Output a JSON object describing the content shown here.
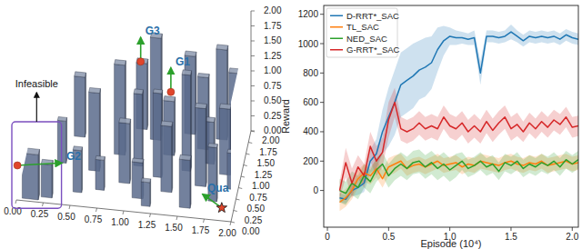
{
  "chart_data": [
    {
      "type": "scene3d",
      "xlim": [
        0,
        2
      ],
      "ylim": [
        0,
        2
      ],
      "zlim": [
        0,
        2
      ],
      "xticks": [
        {
          "value": 0,
          "label": "0.00"
        },
        {
          "value": 0.25,
          "label": "0.25"
        },
        {
          "value": 0.5,
          "label": "0.50"
        },
        {
          "value": 0.75,
          "label": "0.75"
        },
        {
          "value": 1,
          "label": "1.00"
        },
        {
          "value": 1.25,
          "label": "1.25"
        },
        {
          "value": 1.5,
          "label": "1.50"
        },
        {
          "value": 1.75,
          "label": "1.75"
        },
        {
          "value": 2,
          "label": "2.00"
        }
      ],
      "yticks": [
        {
          "value": 0,
          "label": "0.00"
        },
        {
          "value": 0.25,
          "label": "0.25"
        },
        {
          "value": 0.5,
          "label": "0.50"
        },
        {
          "value": 0.75,
          "label": "0.75"
        },
        {
          "value": 1,
          "label": "1.00"
        },
        {
          "value": 1.25,
          "label": "1.25"
        },
        {
          "value": 1.5,
          "label": "1.50"
        },
        {
          "value": 1.75,
          "label": "1.75"
        },
        {
          "value": 2,
          "label": "2.00"
        }
      ],
      "zticks": [
        {
          "value": 0,
          "label": "0.00"
        },
        {
          "value": 0.25,
          "label": "0.25"
        },
        {
          "value": 0.5,
          "label": "0.50"
        },
        {
          "value": 0.75,
          "label": "0.75"
        },
        {
          "value": 1,
          "label": "1.00"
        },
        {
          "value": 1.25,
          "label": "1.25"
        },
        {
          "value": 1.5,
          "label": "1.50"
        },
        {
          "value": 1.75,
          "label": "1.75"
        },
        {
          "value": 2,
          "label": "2.00"
        }
      ],
      "color": "#5b6b8c",
      "obstacles": [
        {
          "x": 0.05,
          "y": 0.05,
          "w": 0.15,
          "d": 0.12,
          "h": 0.75
        },
        {
          "x": 0.22,
          "y": 0.12,
          "w": 0.1,
          "d": 0.1,
          "h": 0.55
        },
        {
          "x": 0.5,
          "y": 0.3,
          "w": 0.08,
          "d": 0.08,
          "h": 0.7
        },
        {
          "x": 0.6,
          "y": 0.8,
          "w": 0.1,
          "d": 0.1,
          "h": 1.3
        },
        {
          "x": 0.7,
          "y": 0.4,
          "w": 0.08,
          "d": 0.08,
          "h": 0.5
        },
        {
          "x": 0.8,
          "y": 1.2,
          "w": 0.1,
          "d": 0.1,
          "h": 1.5
        },
        {
          "x": 0.9,
          "y": 0.6,
          "w": 0.1,
          "d": 0.1,
          "h": 1.0
        },
        {
          "x": 1.0,
          "y": 1.0,
          "w": 0.08,
          "d": 0.1,
          "h": 1.2
        },
        {
          "x": 1.05,
          "y": 0.3,
          "w": 0.1,
          "d": 0.08,
          "h": 0.6
        },
        {
          "x": 1.1,
          "y": 1.6,
          "w": 0.1,
          "d": 0.1,
          "h": 1.7
        },
        {
          "x": 1.2,
          "y": 0.8,
          "w": 0.08,
          "d": 0.08,
          "h": 1.4
        },
        {
          "x": 1.25,
          "y": 1.3,
          "w": 0.1,
          "d": 0.1,
          "h": 0.9
        },
        {
          "x": 1.3,
          "y": 0.5,
          "w": 0.1,
          "d": 0.1,
          "h": 1.1
        },
        {
          "x": 1.4,
          "y": 1.8,
          "w": 0.1,
          "d": 0.1,
          "h": 1.3
        },
        {
          "x": 1.45,
          "y": 1.0,
          "w": 0.08,
          "d": 0.1,
          "h": 1.6
        },
        {
          "x": 1.5,
          "y": 0.2,
          "w": 0.1,
          "d": 0.1,
          "h": 0.8
        },
        {
          "x": 1.55,
          "y": 1.5,
          "w": 0.1,
          "d": 0.08,
          "h": 1.2
        },
        {
          "x": 1.6,
          "y": 0.7,
          "w": 0.1,
          "d": 0.1,
          "h": 1.3
        },
        {
          "x": 1.65,
          "y": 1.2,
          "w": 0.08,
          "d": 0.1,
          "h": 0.7
        },
        {
          "x": 1.7,
          "y": 1.75,
          "w": 0.1,
          "d": 0.1,
          "h": 1.5
        },
        {
          "x": 1.75,
          "y": 0.4,
          "w": 0.08,
          "d": 0.08,
          "h": 0.9
        },
        {
          "x": 1.8,
          "y": 1.0,
          "w": 0.1,
          "d": 0.1,
          "h": 1.1
        },
        {
          "x": 1.85,
          "y": 1.4,
          "w": 0.1,
          "d": 0.1,
          "h": 1.4
        },
        {
          "x": 1.9,
          "y": 0.7,
          "w": 0.08,
          "d": 0.08,
          "h": 0.6
        },
        {
          "x": 0.4,
          "y": 1.5,
          "w": 0.1,
          "d": 0.1,
          "h": 1.0
        },
        {
          "x": 0.3,
          "y": 0.9,
          "w": 0.08,
          "d": 0.08,
          "h": 0.7
        },
        {
          "x": 1.15,
          "y": 0.15,
          "w": 0.08,
          "d": 0.08,
          "h": 0.4
        },
        {
          "x": 0.95,
          "y": 1.8,
          "w": 0.1,
          "d": 0.1,
          "h": 1.1
        }
      ],
      "points": [
        {
          "label": "G1",
          "x": 1.3,
          "y": 1.5,
          "z": 0.9,
          "arrow": [
            0,
            0,
            0.4
          ],
          "color": "#e0452b",
          "marker": "circle"
        },
        {
          "label": "G2",
          "x": 0.0,
          "y": 0.1,
          "z": 0.5,
          "arrow": [
            0.4,
            0.15,
            0
          ],
          "color": "#e0452b",
          "marker": "circle"
        },
        {
          "label": "G3",
          "x": 1.0,
          "y": 1.7,
          "z": 1.2,
          "arrow": [
            0,
            0,
            0.4
          ],
          "color": "#e0452b",
          "marker": "circle"
        },
        {
          "label": "Qua",
          "x": 1.9,
          "y": 0.15,
          "z": 0.1,
          "arrow": [
            -0.2,
            0.25,
            0
          ],
          "color": "#e0452b",
          "marker": "star"
        }
      ],
      "region": {
        "label": "Infeasible",
        "x": [
          0,
          0.35
        ],
        "y": [
          0,
          0.3
        ],
        "z": [
          0,
          1.0
        ]
      }
    },
    {
      "type": "line",
      "x_label": "Episode (10⁴)",
      "y_label": "Reward",
      "xlim": [
        -0.03,
        2.05
      ],
      "ylim": [
        -250,
        1260
      ],
      "xticks": [
        0,
        0.5,
        {
          "value": 1,
          "label": "1.0"
        },
        1.5,
        {
          "value": 2,
          "label": "2.0"
        }
      ],
      "yticks": [
        0,
        200,
        400,
        600,
        800,
        1000,
        1200
      ],
      "grid": false,
      "legend": "upper left",
      "x": [
        0.1,
        0.15,
        0.2,
        0.25,
        0.3,
        0.35,
        0.4,
        0.45,
        0.5,
        0.55,
        0.6,
        0.65,
        0.7,
        0.75,
        0.8,
        0.85,
        0.9,
        0.95,
        1.0,
        1.05,
        1.1,
        1.15,
        1.2,
        1.25,
        1.3,
        1.35,
        1.4,
        1.45,
        1.5,
        1.55,
        1.6,
        1.65,
        1.7,
        1.75,
        1.8,
        1.85,
        1.9,
        1.95,
        2.0,
        2.05
      ],
      "series": [
        {
          "name": "D-RRT*_SAC",
          "color": "#1f77b4",
          "values": [
            -50,
            -60,
            0,
            20,
            50,
            200,
            250,
            400,
            500,
            600,
            720,
            750,
            780,
            820,
            840,
            870,
            960,
            1020,
            1050,
            1040,
            1040,
            1030,
            1040,
            800,
            1050,
            1050,
            1040,
            1050,
            1080,
            1050,
            1020,
            1050,
            1040,
            1050,
            1040,
            1050,
            1030,
            1060,
            1040,
            1030
          ],
          "error": [
            30,
            30,
            40,
            50,
            60,
            80,
            100,
            150,
            200,
            220,
            220,
            220,
            220,
            200,
            200,
            180,
            150,
            100,
            60,
            50,
            40,
            40,
            50,
            80,
            40,
            40,
            40,
            40,
            50,
            40,
            40,
            40,
            40,
            40,
            40,
            40,
            40,
            40,
            40,
            40
          ]
        },
        {
          "name": "TL_SAC",
          "color": "#ff7f0e",
          "values": [
            -80,
            -50,
            0,
            80,
            120,
            100,
            150,
            80,
            160,
            180,
            200,
            150,
            170,
            180,
            160,
            180,
            200,
            170,
            180,
            190,
            160,
            180,
            170,
            200,
            190,
            180,
            170,
            190,
            200,
            180,
            170,
            190,
            180,
            200,
            170,
            180,
            190,
            200,
            180,
            190
          ],
          "error": [
            60,
            60,
            60,
            60,
            60,
            60,
            60,
            60,
            60,
            60,
            50,
            50,
            50,
            50,
            50,
            50,
            50,
            50,
            50,
            50,
            50,
            50,
            50,
            50,
            50,
            50,
            50,
            50,
            50,
            50,
            50,
            50,
            50,
            50,
            50,
            50,
            50,
            50,
            50,
            50
          ]
        },
        {
          "name": "NED_SAC",
          "color": "#2ca02c",
          "values": [
            0,
            -20,
            50,
            20,
            100,
            60,
            140,
            180,
            100,
            150,
            180,
            150,
            190,
            200,
            160,
            190,
            150,
            180,
            140,
            170,
            200,
            150,
            170,
            200,
            160,
            180,
            130,
            190,
            170,
            200,
            150,
            180,
            160,
            190,
            170,
            200,
            160,
            210,
            180,
            210
          ],
          "error": [
            80,
            80,
            80,
            80,
            80,
            80,
            80,
            80,
            80,
            80,
            80,
            80,
            80,
            80,
            80,
            80,
            80,
            80,
            80,
            80,
            60,
            60,
            60,
            60,
            60,
            60,
            60,
            60,
            60,
            60,
            60,
            60,
            60,
            60,
            60,
            60,
            60,
            60,
            60,
            60
          ]
        },
        {
          "name": "G-RRT*_SAC",
          "color": "#d62728",
          "values": [
            0,
            190,
            50,
            160,
            100,
            300,
            200,
            260,
            480,
            600,
            420,
            400,
            420,
            460,
            420,
            440,
            420,
            500,
            440,
            420,
            460,
            400,
            440,
            400,
            470,
            410,
            460,
            500,
            420,
            450,
            400,
            460,
            420,
            470,
            430,
            480,
            450,
            500,
            430,
            440
          ],
          "error": [
            60,
            100,
            100,
            80,
            80,
            100,
            100,
            100,
            120,
            100,
            80,
            80,
            80,
            80,
            80,
            80,
            80,
            80,
            80,
            80,
            80,
            80,
            80,
            80,
            80,
            80,
            80,
            80,
            80,
            80,
            70,
            70,
            70,
            70,
            70,
            70,
            70,
            70,
            70,
            70
          ]
        }
      ]
    }
  ]
}
